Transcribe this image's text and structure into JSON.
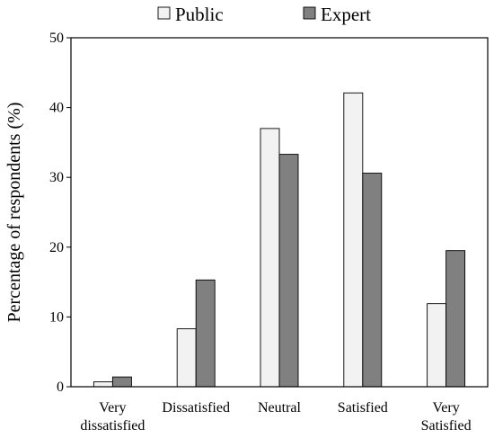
{
  "chart_data": {
    "type": "bar",
    "ylabel": "Percentage of respondents (%)",
    "xlabel": "",
    "ylim": [
      0,
      50
    ],
    "yticks": [
      0,
      10,
      20,
      30,
      40,
      50
    ],
    "grid": false,
    "legend_position": "top",
    "categories": [
      [
        "Very",
        "dissatisfied"
      ],
      [
        "Dissatisfied"
      ],
      [
        "Neutral"
      ],
      [
        "Satisfied"
      ],
      [
        "Very",
        "Satisfied"
      ]
    ],
    "series": [
      {
        "name": "Public",
        "color": "#f2f2f2",
        "values": [
          0.7,
          8.3,
          37.0,
          42.1,
          11.9
        ]
      },
      {
        "name": "Expert",
        "color": "#808080",
        "values": [
          1.4,
          15.3,
          33.3,
          30.6,
          19.5
        ]
      }
    ]
  }
}
